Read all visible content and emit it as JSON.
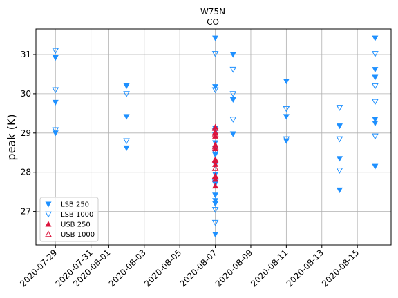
{
  "chart_data": {
    "type": "scatter",
    "title": "W75N",
    "subtitle": "CO",
    "xlabel": "",
    "ylabel": "peak (K)",
    "x_ticks": [
      "2020-07-29",
      "2020-07-31",
      "2020-08-01",
      "2020-08-03",
      "2020-08-05",
      "2020-08-07",
      "2020-08-09",
      "2020-08-11",
      "2020-08-13",
      "2020-08-15"
    ],
    "x_tick_positions_days": [
      0,
      2,
      3,
      5,
      7,
      9,
      11,
      13,
      15,
      17
    ],
    "xlim_days": [
      -1.1,
      18.9
    ],
    "x_origin_date": "2020-07-29",
    "y_ticks": [
      27,
      28,
      29,
      30,
      31
    ],
    "ylim": [
      26.15,
      31.65
    ],
    "grid": true,
    "legend_position": "lower-left",
    "colors": {
      "lsb": "#1e90ff",
      "usb": "#dc143c"
    },
    "series": [
      {
        "name": "LSB 250",
        "marker": "triangle-down",
        "filled": true,
        "color": "#1e90ff",
        "points": [
          [
            "2020-07-29",
            30.92
          ],
          [
            "2020-07-29",
            29.78
          ],
          [
            "2020-07-29",
            29.0
          ],
          [
            "2020-08-02",
            30.2
          ],
          [
            "2020-08-02",
            29.42
          ],
          [
            "2020-08-02",
            28.62
          ],
          [
            "2020-08-07",
            31.42
          ],
          [
            "2020-08-07",
            30.18
          ],
          [
            "2020-08-07",
            29.12
          ],
          [
            "2020-08-07",
            28.95
          ],
          [
            "2020-08-07",
            28.75
          ],
          [
            "2020-08-07",
            28.6
          ],
          [
            "2020-08-07",
            28.45
          ],
          [
            "2020-08-07",
            28.2
          ],
          [
            "2020-08-07",
            27.95
          ],
          [
            "2020-08-07",
            27.7
          ],
          [
            "2020-08-07",
            27.42
          ],
          [
            "2020-08-07",
            27.28
          ],
          [
            "2020-08-07",
            27.2
          ],
          [
            "2020-08-07",
            26.42
          ],
          [
            "2020-08-08",
            31.0
          ],
          [
            "2020-08-08",
            29.85
          ],
          [
            "2020-08-08",
            28.98
          ],
          [
            "2020-08-11",
            30.32
          ],
          [
            "2020-08-11",
            29.42
          ],
          [
            "2020-08-11",
            28.8
          ],
          [
            "2020-08-14",
            29.18
          ],
          [
            "2020-08-14",
            28.35
          ],
          [
            "2020-08-14",
            27.55
          ],
          [
            "2020-08-16",
            31.42
          ],
          [
            "2020-08-16",
            30.62
          ],
          [
            "2020-08-16",
            30.42
          ],
          [
            "2020-08-16",
            29.35
          ],
          [
            "2020-08-16",
            29.25
          ],
          [
            "2020-08-16",
            28.15
          ]
        ]
      },
      {
        "name": "LSB 1000",
        "marker": "triangle-down",
        "filled": false,
        "color": "#1e90ff",
        "points": [
          [
            "2020-07-29",
            31.1
          ],
          [
            "2020-07-29",
            30.1
          ],
          [
            "2020-07-29",
            29.08
          ],
          [
            "2020-08-02",
            30.0
          ],
          [
            "2020-08-02",
            28.8
          ],
          [
            "2020-08-07",
            31.02
          ],
          [
            "2020-08-07",
            30.1
          ],
          [
            "2020-08-07",
            29.05
          ],
          [
            "2020-08-07",
            28.5
          ],
          [
            "2020-08-07",
            27.75
          ],
          [
            "2020-08-07",
            27.05
          ],
          [
            "2020-08-07",
            26.72
          ],
          [
            "2020-08-08",
            30.62
          ],
          [
            "2020-08-08",
            30.0
          ],
          [
            "2020-08-08",
            29.35
          ],
          [
            "2020-08-11",
            29.62
          ],
          [
            "2020-08-11",
            28.85
          ],
          [
            "2020-08-14",
            29.65
          ],
          [
            "2020-08-14",
            28.85
          ],
          [
            "2020-08-14",
            28.05
          ],
          [
            "2020-08-16",
            31.02
          ],
          [
            "2020-08-16",
            30.2
          ],
          [
            "2020-08-16",
            29.8
          ],
          [
            "2020-08-16",
            28.92
          ]
        ]
      },
      {
        "name": "USB 250",
        "marker": "triangle-up",
        "filled": true,
        "color": "#dc143c",
        "points": [
          [
            "2020-08-07",
            29.15
          ],
          [
            "2020-08-07",
            29.02
          ],
          [
            "2020-08-07",
            28.92
          ],
          [
            "2020-08-07",
            28.7
          ],
          [
            "2020-08-07",
            28.6
          ],
          [
            "2020-08-07",
            28.3
          ],
          [
            "2020-08-07",
            28.2
          ],
          [
            "2020-08-07",
            27.9
          ],
          [
            "2020-08-07",
            27.82
          ],
          [
            "2020-08-07",
            27.65
          ]
        ]
      },
      {
        "name": "USB 1000",
        "marker": "triangle-up",
        "filled": false,
        "color": "#dc143c",
        "points": [
          [
            "2020-08-07",
            29.12
          ],
          [
            "2020-08-07",
            28.98
          ],
          [
            "2020-08-07",
            28.65
          ],
          [
            "2020-08-07",
            28.32
          ],
          [
            "2020-08-07",
            28.1
          ],
          [
            "2020-08-07",
            27.9
          ]
        ]
      }
    ]
  }
}
